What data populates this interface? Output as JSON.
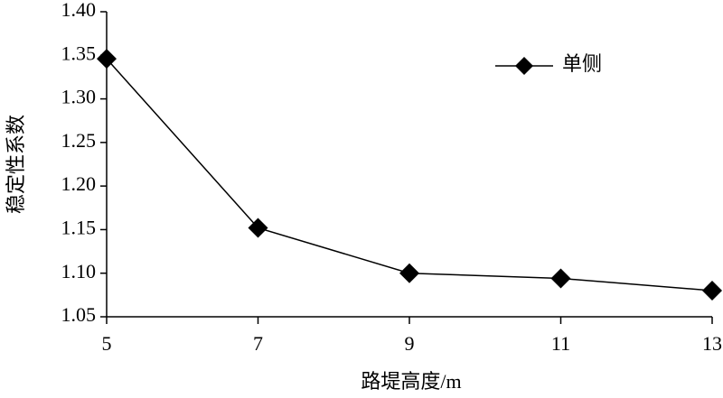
{
  "chart_data": {
    "type": "line",
    "x_label": "路堤高度/m",
    "y_label": "稳定性系数",
    "x": [
      5,
      7,
      9,
      11,
      13
    ],
    "series": [
      {
        "name": "单侧",
        "color": "#000000",
        "values": [
          1.346,
          1.152,
          1.1,
          1.094,
          1.08
        ]
      }
    ],
    "xlim": [
      5,
      13
    ],
    "xticks": [
      5,
      7,
      9,
      11,
      13
    ],
    "ylim": [
      1.05,
      1.4
    ],
    "yticks": [
      1.05,
      {
        "value": 1.1,
        "label": "1.10"
      },
      1.15,
      {
        "value": 1.2,
        "label": "1.20"
      },
      1.25,
      {
        "value": 1.3,
        "label": "1.30"
      },
      1.35,
      {
        "value": 1.4,
        "label": "1.40"
      }
    ],
    "grid": false,
    "legend": "upper right"
  }
}
